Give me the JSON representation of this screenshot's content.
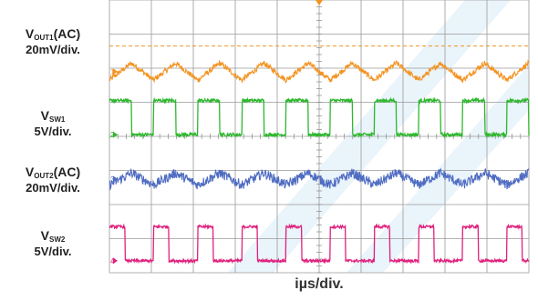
{
  "labels": {
    "ch1": {
      "main": "V",
      "sub": "OUT1",
      "tail": "(AC)",
      "scale": "20mV/div."
    },
    "ch2": {
      "main": "V",
      "sub": "SW1",
      "tail": "",
      "scale": "5V/div."
    },
    "ch3": {
      "main": "V",
      "sub": "OUT2",
      "tail": "(AC)",
      "scale": "20mV/div."
    },
    "ch4": {
      "main": "V",
      "sub": "SW2",
      "tail": "",
      "scale": "5V/div."
    },
    "time_scale": "iµs/div."
  },
  "chart_data": {
    "type": "line",
    "title": "",
    "xlabel": "iµs/div.",
    "ylabel": "",
    "grid": true,
    "x_divisions": 10,
    "y_divisions": 8,
    "xlim": [
      0,
      10
    ],
    "ylim": [
      0,
      8
    ],
    "background_overlay": "faint light-blue diagonal watermark stripes",
    "series": [
      {
        "name": "VOUT1(AC)",
        "channel_marker": "1",
        "color": "#f39321",
        "waveform": "triangle-ripple",
        "ground_div": 5.9,
        "amplitude_div": 0.5,
        "cycles": 9.5,
        "noise_div": 0.08,
        "trigger_line_div": 6.65
      },
      {
        "name": "VSW1",
        "channel_marker": "2",
        "color": "#2db82d",
        "waveform": "square",
        "ground_div": 4.05,
        "amplitude_div": 1.0,
        "cycles": 9.5,
        "duty": 0.5,
        "noise_div": 0.05
      },
      {
        "name": "VOUT2(AC)",
        "channel_marker": "3",
        "color": "#4f6cc2",
        "waveform": "triangle-ripple",
        "ground_div": 2.75,
        "amplitude_div": 0.35,
        "cycles": 9.5,
        "noise_div": 0.14
      },
      {
        "name": "VSW2",
        "channel_marker": "4",
        "color": "#e0217d",
        "waveform": "square",
        "ground_div": 0.35,
        "amplitude_div": 1.0,
        "cycles": 9.5,
        "duty": 0.35,
        "noise_div": 0.04
      }
    ]
  }
}
